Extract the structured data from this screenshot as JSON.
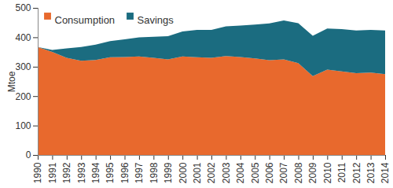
{
  "chart_data": {
    "type": "area",
    "stacked": true,
    "y_label": "Mtoe",
    "legend": "top-left",
    "grid": false,
    "x": [
      1990,
      1991,
      1992,
      1993,
      1994,
      1995,
      1996,
      1997,
      1998,
      1999,
      2000,
      2001,
      2002,
      2003,
      2004,
      2005,
      2006,
      2007,
      2008,
      2009,
      2010,
      2011,
      2012,
      2013,
      2014
    ],
    "series": [
      {
        "name": "Consumption",
        "color": "#e8692d",
        "values": [
          367,
          350,
          330,
          320,
          323,
          332,
          333,
          335,
          330,
          325,
          335,
          332,
          330,
          336,
          333,
          328,
          322,
          325,
          312,
          268,
          290,
          284,
          278,
          280,
          275
        ]
      },
      {
        "name": "Savings",
        "color": "#1b6c80",
        "values": [
          0,
          7,
          32,
          47,
          52,
          55,
          60,
          65,
          72,
          79,
          85,
          93,
          95,
          101,
          107,
          115,
          125,
          132,
          136,
          137,
          140,
          144,
          145,
          145,
          148
        ]
      }
    ],
    "xlim": [
      1990,
      2014
    ],
    "xticks": [
      1990,
      1991,
      1992,
      1993,
      1994,
      1995,
      1996,
      1997,
      1998,
      1999,
      2000,
      2001,
      2002,
      2003,
      2004,
      2005,
      2006,
      2007,
      2008,
      2009,
      2010,
      2011,
      2012,
      2013,
      2014
    ],
    "ylim": [
      0,
      500
    ],
    "yticks": [
      0,
      100,
      200,
      300,
      400,
      500
    ]
  }
}
